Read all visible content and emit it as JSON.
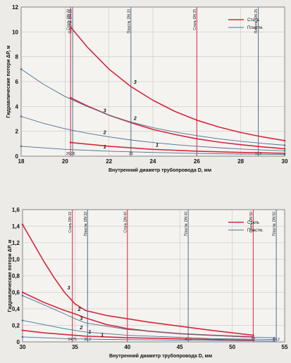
{
  "chart_data": [
    {
      "type": "line",
      "xlabel": "Внутренний диаметр трубопровода D, мм",
      "ylabel": "Гидравлические потери ΔP, м",
      "xlim": [
        18,
        30
      ],
      "ylim": [
        0,
        12
      ],
      "x_ticks": [
        "18",
        "20",
        "22",
        "24",
        "26",
        "28",
        "30"
      ],
      "y_ticks": [
        "0",
        "2",
        "4",
        "6",
        "8",
        "10",
        "12"
      ],
      "grid": true,
      "legend": {
        "position": "right",
        "entries": [
          {
            "label": "Сталь",
            "color": "#d7263d"
          },
          {
            "label": "Пластм.",
            "color": "#4d6f92"
          }
        ]
      },
      "vertical_markers": [
        {
          "x": 20.25,
          "label": "Сталь DN 20",
          "sublabel": "20,25",
          "color": "#d7263d"
        },
        {
          "x": 20.25,
          "label": "Пластм. DN 15",
          "sublabel": "",
          "color": "#4d6f92"
        },
        {
          "x": 23,
          "label": "Пластм. DN 20",
          "sublabel": "23",
          "color": "#4d6f92"
        },
        {
          "x": 26,
          "label": "Сталь DN 25",
          "sublabel": "",
          "color": "#d7263d"
        },
        {
          "x": 28.8,
          "label": "Пластм. DN 25",
          "sublabel": "28,8",
          "color": "#4d6f92"
        }
      ],
      "series": [
        {
          "name": "3",
          "material": "steel",
          "color": "#d7263d",
          "x": [
            20.25,
            21,
            22,
            23,
            24,
            25,
            26,
            27,
            28,
            29,
            30
          ],
          "y": [
            10.4,
            8.8,
            7.0,
            5.6,
            4.5,
            3.6,
            2.9,
            2.35,
            1.9,
            1.55,
            1.25
          ]
        },
        {
          "name": "2",
          "material": "steel",
          "color": "#d7263d",
          "x": [
            20.25,
            21,
            22,
            23,
            24,
            25,
            26,
            27,
            28,
            29,
            30
          ],
          "y": [
            4.7,
            4.05,
            3.3,
            2.7,
            2.15,
            1.75,
            1.4,
            1.13,
            0.92,
            0.75,
            0.6
          ]
        },
        {
          "name": "1",
          "material": "steel",
          "color": "#d7263d",
          "x": [
            20.25,
            22,
            24,
            26,
            28,
            30
          ],
          "y": [
            1.1,
            0.8,
            0.55,
            0.4,
            0.3,
            0.23
          ]
        },
        {
          "name": "3",
          "material": "plastic",
          "color": "#4d6f92",
          "x": [
            18,
            19,
            20,
            21,
            22,
            23,
            24,
            25,
            26,
            27,
            28,
            29,
            30
          ],
          "y": [
            7.0,
            5.8,
            4.8,
            4.0,
            3.3,
            2.75,
            2.3,
            1.95,
            1.65,
            1.4,
            1.2,
            1.03,
            0.88
          ]
        },
        {
          "name": "2",
          "material": "plastic",
          "color": "#4d6f92",
          "x": [
            18,
            19,
            20,
            21,
            22,
            23,
            24,
            25,
            26,
            27,
            28,
            29,
            30
          ],
          "y": [
            3.2,
            2.65,
            2.2,
            1.85,
            1.55,
            1.3,
            1.1,
            0.93,
            0.8,
            0.68,
            0.58,
            0.5,
            0.43
          ]
        },
        {
          "name": "1",
          "material": "plastic",
          "color": "#4d6f92",
          "x": [
            18,
            20,
            22,
            24,
            26,
            28,
            30
          ],
          "y": [
            0.8,
            0.55,
            0.4,
            0.3,
            0.22,
            0.17,
            0.13
          ]
        }
      ]
    },
    {
      "type": "line",
      "xlabel": "Внутренний диаметр трубопровода D, мм",
      "ylabel": "Гидравлические потери ΔP, м",
      "xlim": [
        30,
        55
      ],
      "ylim": [
        0,
        1.6
      ],
      "x_ticks": [
        "30",
        "35",
        "40",
        "45",
        "50",
        "55"
      ],
      "y_ticks": [
        "0",
        "0,2",
        "0,4",
        "0,6",
        "0,8",
        "1,0",
        "1,2",
        "1,4",
        "1,6"
      ],
      "grid": true,
      "legend": {
        "position": "right",
        "entries": [
          {
            "label": "Сталь",
            "color": "#d7263d"
          },
          {
            "label": "Пластм.",
            "color": "#4d6f92"
          }
        ]
      },
      "vertical_markers": [
        {
          "x": 34.75,
          "label": "Сталь DN 32",
          "sublabel": "34,75",
          "color": "#d7263d"
        },
        {
          "x": 36.2,
          "label": "Пластм. DN 32",
          "sublabel": "36,2",
          "color": "#4d6f92"
        },
        {
          "x": 40,
          "label": "Сталь DN 40",
          "sublabel": "",
          "color": "#d7263d"
        },
        {
          "x": 45.8,
          "label": "Пластм. DN 40",
          "sublabel": "45,8",
          "color": "#4d6f92"
        },
        {
          "x": 52,
          "label": "Сталь DN 50",
          "sublabel": "52",
          "color": "#d7263d"
        },
        {
          "x": 54.2,
          "label": "Пластм. DN 50",
          "sublabel": "54,2",
          "color": "#4d6f92"
        }
      ],
      "series": [
        {
          "name": "3",
          "material": "steel",
          "color": "#d7263d",
          "x": [
            30,
            31,
            32,
            33,
            34,
            35,
            36,
            38,
            40,
            42,
            45,
            48,
            52
          ],
          "y": [
            1.42,
            1.2,
            0.98,
            0.78,
            0.6,
            0.46,
            0.38,
            0.32,
            0.28,
            0.24,
            0.19,
            0.14,
            0.08
          ]
        },
        {
          "name": "2",
          "material": "steel",
          "color": "#d7263d",
          "x": [
            30,
            32,
            34,
            35,
            36,
            38,
            40,
            42,
            45,
            48,
            52
          ],
          "y": [
            0.6,
            0.48,
            0.38,
            0.34,
            0.29,
            0.21,
            0.16,
            0.13,
            0.1,
            0.08,
            0.06
          ]
        },
        {
          "name": "1",
          "material": "steel",
          "color": "#d7263d",
          "x": [
            30,
            32,
            34,
            36,
            38,
            40,
            44,
            48,
            52
          ],
          "y": [
            0.14,
            0.11,
            0.09,
            0.07,
            0.06,
            0.05,
            0.04,
            0.03,
            0.02
          ]
        },
        {
          "name": "3",
          "material": "plastic",
          "color": "#4d6f92",
          "x": [
            30,
            32,
            34,
            35,
            36,
            38,
            40,
            42,
            45,
            48,
            51,
            54
          ],
          "y": [
            0.56,
            0.45,
            0.34,
            0.28,
            0.23,
            0.19,
            0.15,
            0.13,
            0.1,
            0.08,
            0.06,
            0.05
          ]
        },
        {
          "name": "2",
          "material": "plastic",
          "color": "#4d6f92",
          "x": [
            30,
            32,
            34,
            36,
            38,
            40,
            44,
            48,
            54
          ],
          "y": [
            0.26,
            0.21,
            0.16,
            0.12,
            0.1,
            0.08,
            0.06,
            0.04,
            0.03
          ]
        },
        {
          "name": "1",
          "material": "plastic",
          "color": "#4d6f92",
          "x": [
            30,
            34,
            38,
            42,
            46,
            50,
            54
          ],
          "y": [
            0.06,
            0.04,
            0.03,
            0.025,
            0.02,
            0.015,
            0.01
          ]
        }
      ]
    }
  ]
}
